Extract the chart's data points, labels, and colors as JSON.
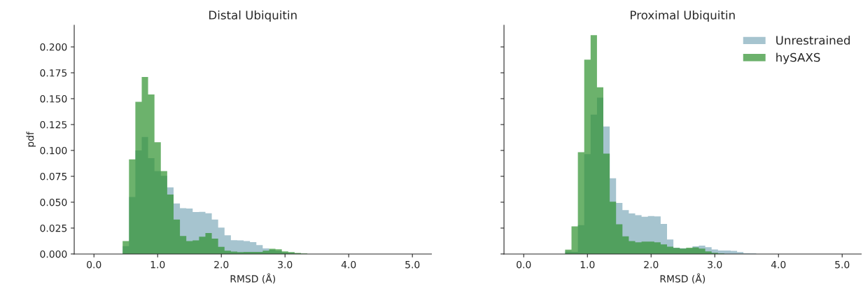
{
  "chart_data": [
    {
      "type": "histogram",
      "title": "Distal Ubiquitin",
      "xlabel": "RMSD (Å)",
      "ylabel": "pdf",
      "bins": [
        0.05,
        0.15,
        0.25,
        0.35,
        0.45,
        0.55,
        0.65,
        0.75,
        0.85,
        0.95,
        1.05,
        1.15,
        1.25,
        1.35,
        1.45,
        1.55,
        1.65,
        1.75,
        1.85,
        1.95,
        2.05,
        2.15,
        2.25,
        2.35,
        2.45,
        2.55,
        2.65,
        2.75,
        2.85,
        2.95,
        3.05,
        3.15,
        3.25,
        3.35,
        3.45,
        3.55,
        3.65,
        3.75,
        3.85,
        3.95
      ],
      "series": [
        {
          "color": "#a6c4cf",
          "values": [
            0,
            0,
            0,
            0,
            0.0075,
            0.055,
            0.1,
            0.113,
            0.0925,
            0.08,
            0.0755,
            0.0644,
            0.0488,
            0.0443,
            0.0439,
            0.0405,
            0.0407,
            0.0393,
            0.0332,
            0.0255,
            0.0181,
            0.0133,
            0.0131,
            0.0124,
            0.0115,
            0.0086,
            0.0054,
            0.004,
            0.003,
            0.0015,
            0.001,
            0.0005,
            0,
            0,
            0,
            0,
            0,
            0,
            0
          ]
        },
        {
          "color": "#2e912e",
          "values": [
            0,
            0,
            0,
            0,
            0.0124,
            0.0913,
            0.147,
            0.171,
            0.154,
            0.108,
            0.08,
            0.0574,
            0.0332,
            0.0174,
            0.0124,
            0.0131,
            0.0167,
            0.0203,
            0.0149,
            0.0068,
            0.0032,
            0.0023,
            0.0018,
            0.002,
            0.002,
            0.002,
            0.0032,
            0.005,
            0.0045,
            0.0025,
            0.0018,
            0.0009,
            0.0005,
            0,
            0,
            0,
            0,
            0,
            0
          ]
        }
      ],
      "xlim": [
        -0.31,
        5.3
      ],
      "ylim": [
        0,
        0.221
      ],
      "xticks": [
        {
          "value": 0,
          "label": "0.0"
        },
        {
          "value": 1,
          "label": "1.0"
        },
        {
          "value": 2,
          "label": "2.0"
        },
        {
          "value": 3,
          "label": "3.0"
        },
        {
          "value": 4,
          "label": "4.0"
        },
        {
          "value": 5,
          "label": "5.0"
        }
      ],
      "yticks": [
        {
          "value": 0,
          "label": "0.000"
        },
        {
          "value": 0.025,
          "label": "0.025"
        },
        {
          "value": 0.05,
          "label": "0.050"
        },
        {
          "value": 0.075,
          "label": "0.075"
        },
        {
          "value": 0.1,
          "label": "0.100"
        },
        {
          "value": 0.125,
          "label": "0.125"
        },
        {
          "value": 0.15,
          "label": "0.150"
        },
        {
          "value": 0.175,
          "label": "0.175"
        },
        {
          "value": 0.2,
          "label": "0.200"
        }
      ],
      "grid": false,
      "legend": false
    },
    {
      "type": "histogram",
      "title": "Proximal Ubiquitin",
      "xlabel": "RMSD (Å)",
      "bins": [
        0.05,
        0.15,
        0.25,
        0.35,
        0.45,
        0.55,
        0.65,
        0.75,
        0.85,
        0.95,
        1.05,
        1.15,
        1.25,
        1.35,
        1.45,
        1.55,
        1.65,
        1.75,
        1.85,
        1.95,
        2.05,
        2.15,
        2.25,
        2.35,
        2.45,
        2.55,
        2.65,
        2.75,
        2.85,
        2.95,
        3.05,
        3.15,
        3.25,
        3.35,
        3.45,
        3.55,
        3.65,
        3.75,
        3.85,
        3.95
      ],
      "series": [
        {
          "name": "Unrestrained",
          "color": "#a6c4cf",
          "values": [
            0,
            0,
            0,
            0,
            0,
            0,
            0.0023,
            0.002,
            0.0278,
            0.0965,
            0.1347,
            0.151,
            0.1232,
            0.0732,
            0.0493,
            0.0423,
            0.0391,
            0.0375,
            0.036,
            0.0367,
            0.0363,
            0.029,
            0.014,
            0.006,
            0.0055,
            0.0052,
            0.0074,
            0.0081,
            0.0065,
            0.0043,
            0.0034,
            0.0034,
            0.003,
            0.0018,
            0.0007,
            0.0005,
            0,
            0,
            0
          ]
        },
        {
          "name": "hySAXS",
          "color": "#2e912e",
          "values": [
            0,
            0,
            0,
            0,
            0,
            0,
            0.0041,
            0.0267,
            0.0983,
            0.1876,
            0.2113,
            0.161,
            0.097,
            0.0504,
            0.0287,
            0.017,
            0.0124,
            0.0113,
            0.012,
            0.012,
            0.0113,
            0.0092,
            0.007,
            0.0059,
            0.0052,
            0.006,
            0.0063,
            0.0052,
            0.0025,
            0.0012,
            0.0005,
            0,
            0,
            0,
            0,
            0,
            0,
            0,
            0
          ]
        }
      ],
      "xlim": [
        -0.31,
        5.3
      ],
      "ylim": [
        0,
        0.221
      ],
      "xticks": [
        {
          "value": 0,
          "label": "0.0"
        },
        {
          "value": 1,
          "label": "1.0"
        },
        {
          "value": 2,
          "label": "2.0"
        },
        {
          "value": 3,
          "label": "3.0"
        },
        {
          "value": 4,
          "label": "4.0"
        },
        {
          "value": 5,
          "label": "5.0"
        }
      ],
      "yticks": [
        {
          "value": 0,
          "label": null
        },
        {
          "value": 0.025,
          "label": null
        },
        {
          "value": 0.05,
          "label": null
        },
        {
          "value": 0.075,
          "label": null
        },
        {
          "value": 0.1,
          "label": null
        },
        {
          "value": 0.125,
          "label": null
        },
        {
          "value": 0.15,
          "label": null
        },
        {
          "value": 0.175,
          "label": null
        },
        {
          "value": 0.2,
          "label": null
        }
      ],
      "tick_labels": "x",
      "grid": false,
      "legend": "top right"
    }
  ]
}
